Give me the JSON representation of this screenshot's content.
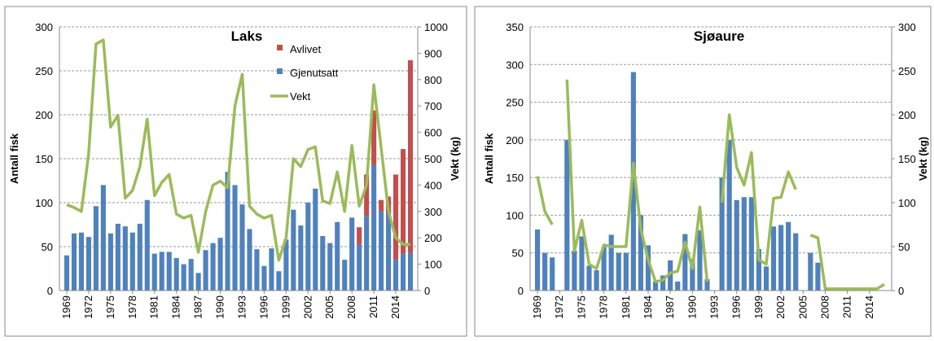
{
  "chart_data": [
    {
      "type": "bar",
      "stacked": true,
      "title": "Laks",
      "ylabel": "Antall fisk",
      "y2label": "Vekt (kg)",
      "x": [
        1969,
        1970,
        1971,
        1972,
        1973,
        1974,
        1975,
        1976,
        1977,
        1978,
        1979,
        1980,
        1981,
        1982,
        1983,
        1984,
        1985,
        1986,
        1987,
        1988,
        1989,
        1990,
        1991,
        1992,
        1993,
        1994,
        1995,
        1996,
        1997,
        1998,
        1999,
        2000,
        2001,
        2002,
        2003,
        2004,
        2005,
        2006,
        2007,
        2008,
        2009,
        2010,
        2011,
        2012,
        2013,
        2014,
        2015,
        2016
      ],
      "xlim": [
        1968,
        2017
      ],
      "xticks": [
        1969,
        1972,
        1975,
        1978,
        1981,
        1984,
        1987,
        1990,
        1993,
        1996,
        1999,
        2002,
        2005,
        2008,
        2011,
        2014
      ],
      "ylim": [
        0,
        300
      ],
      "yticks": [
        0,
        50,
        100,
        150,
        200,
        250,
        300
      ],
      "y2lim": [
        0,
        1000
      ],
      "y2ticks": [
        0,
        100,
        200,
        300,
        400,
        500,
        600,
        700,
        800,
        900,
        1000
      ],
      "grid": true,
      "legend": "top-right",
      "series": [
        {
          "name": "Gjenutsatt",
          "color": "#4f81bd",
          "type": "bar",
          "values": [
            40,
            65,
            66,
            61,
            96,
            120,
            65,
            76,
            73,
            66,
            76,
            103,
            42,
            44,
            44,
            37,
            30,
            36,
            20,
            46,
            54,
            60,
            135,
            120,
            98,
            70,
            47,
            28,
            48,
            22,
            58,
            92,
            74,
            100,
            116,
            62,
            54,
            78,
            35,
            83,
            52,
            85,
            143,
            90,
            88,
            35,
            42,
            43
          ]
        },
        {
          "name": "Avlivet",
          "color": "#c0504d",
          "type": "bar",
          "values": [
            0,
            0,
            0,
            0,
            0,
            0,
            0,
            0,
            0,
            0,
            0,
            0,
            0,
            0,
            0,
            0,
            0,
            0,
            0,
            0,
            0,
            0,
            0,
            0,
            0,
            0,
            0,
            0,
            0,
            0,
            0,
            0,
            0,
            0,
            0,
            0,
            0,
            0,
            0,
            0,
            20,
            47,
            62,
            13,
            19,
            97,
            119,
            219
          ]
        },
        {
          "name": "Vekt",
          "color": "#9bbb59",
          "type": "line",
          "axis": "y2",
          "values": [
            325,
            315,
            300,
            520,
            935,
            950,
            620,
            665,
            350,
            380,
            470,
            650,
            360,
            410,
            440,
            290,
            275,
            285,
            145,
            300,
            400,
            415,
            390,
            700,
            820,
            320,
            290,
            275,
            285,
            115,
            200,
            500,
            470,
            535,
            545,
            340,
            330,
            450,
            300,
            550,
            320,
            400,
            780,
            540,
            300,
            200,
            175,
            175
          ]
        }
      ]
    },
    {
      "type": "bar",
      "stacked": true,
      "title": "Sjøaure",
      "ylabel": "Antall fisk",
      "y2label": "Vekt (kg)",
      "x": [
        1969,
        1970,
        1971,
        1972,
        1973,
        1974,
        1975,
        1976,
        1977,
        1978,
        1979,
        1980,
        1981,
        1982,
        1983,
        1984,
        1985,
        1986,
        1987,
        1988,
        1989,
        1990,
        1991,
        1992,
        1993,
        1994,
        1995,
        1996,
        1997,
        1998,
        1999,
        2000,
        2001,
        2002,
        2003,
        2004,
        2005,
        2006,
        2007,
        2008,
        2009,
        2010,
        2011,
        2012,
        2013,
        2014,
        2015,
        2016
      ],
      "xlim": [
        1968,
        2017
      ],
      "xticks": [
        1969,
        1972,
        1975,
        1978,
        1981,
        1984,
        1987,
        1990,
        1993,
        1996,
        1999,
        2002,
        2005,
        2008,
        2011,
        2014
      ],
      "ylim": [
        0,
        350
      ],
      "yticks": [
        0,
        50,
        100,
        150,
        200,
        250,
        300,
        350
      ],
      "y2lim": [
        0,
        300
      ],
      "y2ticks": [
        0,
        50,
        100,
        150,
        200,
        250,
        300
      ],
      "grid": true,
      "series": [
        {
          "color": "#4f81bd",
          "type": "bar",
          "values": [
            81,
            50,
            44,
            0,
            200,
            53,
            72,
            33,
            27,
            58,
            74,
            50,
            50,
            290,
            100,
            60,
            12,
            20,
            40,
            12,
            75,
            42,
            80,
            15,
            0,
            150,
            200,
            120,
            124,
            124,
            55,
            32,
            85,
            87,
            91,
            76,
            0,
            50,
            37,
            0,
            0,
            0,
            0,
            0,
            0,
            0,
            0,
            0
          ]
        },
        {
          "color": "#9bbb59",
          "type": "line",
          "axis": "y2",
          "values": [
            130,
            90,
            75,
            null,
            240,
            45,
            80,
            30,
            25,
            52,
            50,
            50,
            50,
            145,
            70,
            35,
            10,
            12,
            20,
            22,
            55,
            25,
            95,
            10,
            null,
            100,
            200,
            140,
            120,
            157,
            35,
            30,
            105,
            106,
            135,
            115,
            null,
            63,
            60,
            2,
            2,
            2,
            2,
            2,
            2,
            2,
            2,
            7
          ]
        }
      ]
    }
  ]
}
